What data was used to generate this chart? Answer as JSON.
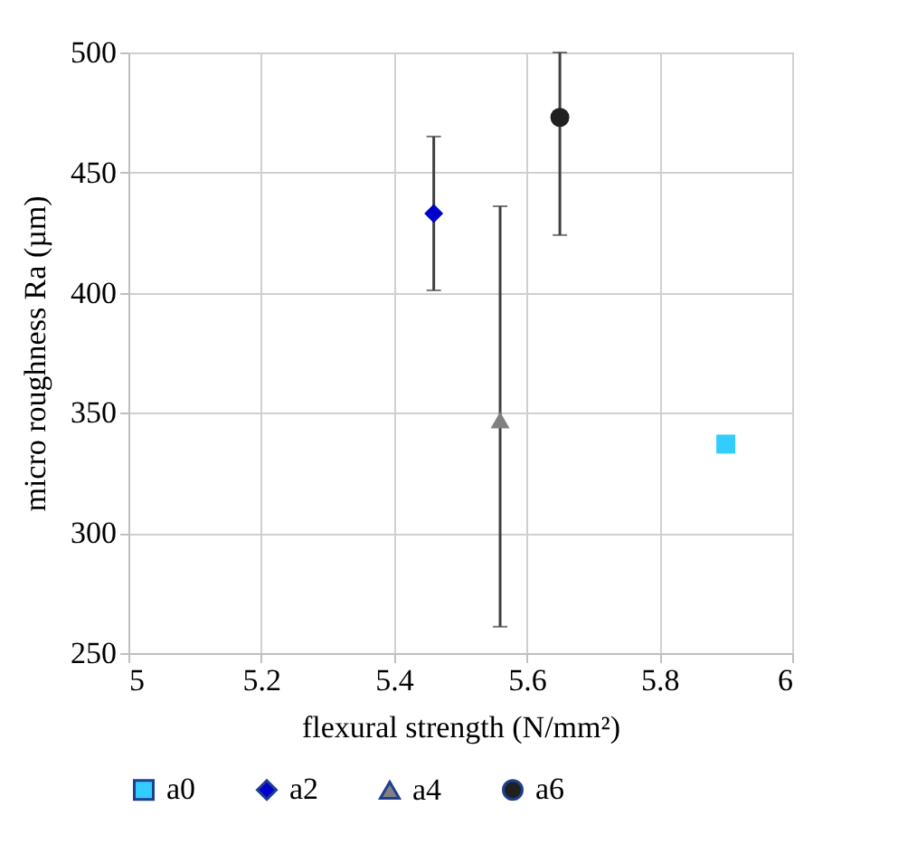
{
  "chart_data": {
    "type": "scatter",
    "xlabel": "flexural strength (N/mm²)",
    "ylabel": "micro roughness Ra (µm)",
    "xlim": [
      5,
      6
    ],
    "xticks": [
      5,
      5.2,
      5.4,
      5.6,
      5.8,
      6
    ],
    "ylim": [
      250,
      500
    ],
    "yticks": [
      250,
      300,
      350,
      400,
      450,
      500
    ],
    "grid": true,
    "legend": "bottom",
    "series": [
      {
        "name": "a0",
        "color": "#33ccff",
        "marker": "square",
        "x": [
          5.9
        ],
        "values": [
          337
        ]
      },
      {
        "name": "a2",
        "color": "#0000cc",
        "marker": "diamond",
        "x": [
          5.46
        ],
        "values": [
          433
        ],
        "errors": [
          [
            401,
            465
          ]
        ]
      },
      {
        "name": "a4",
        "color": "#808080",
        "marker": "triangle",
        "x": [
          5.56
        ],
        "values": [
          347
        ],
        "errors": [
          [
            261,
            436
          ]
        ]
      },
      {
        "name": "a6",
        "color": "#202020",
        "marker": "circle",
        "x": [
          5.65
        ],
        "values": [
          473
        ],
        "errors": [
          [
            424,
            500
          ]
        ]
      }
    ]
  }
}
